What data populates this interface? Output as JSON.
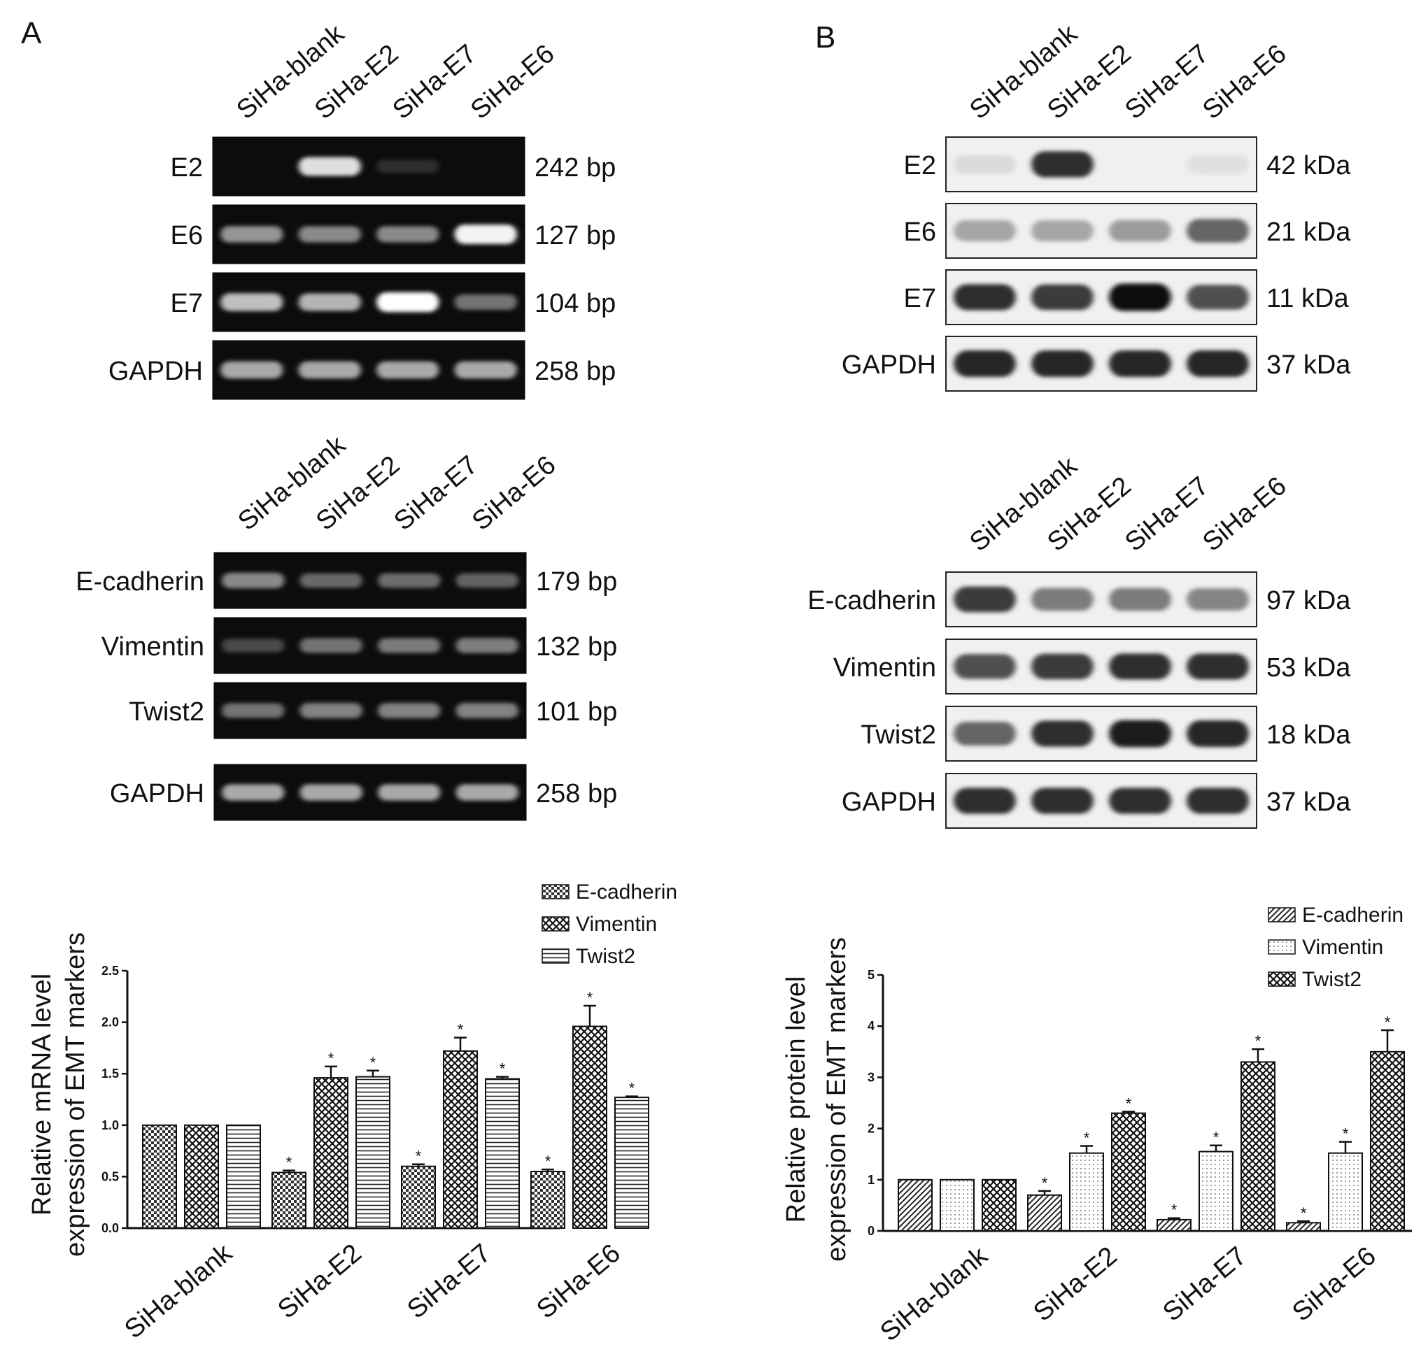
{
  "panels": {
    "A": {
      "label": "A",
      "gel1": {
        "lanes": [
          "SiHa-blank",
          "SiHa-E2",
          "SiHa-E7",
          "SiHa-E6"
        ],
        "rows": [
          {
            "name": "E2",
            "size": "242 bp",
            "intensity": [
              0.02,
              0.85,
              0.03,
              0.02
            ]
          },
          {
            "name": "E6",
            "size": "127 bp",
            "intensity": [
              0.5,
              0.45,
              0.45,
              0.95
            ]
          },
          {
            "name": "E7",
            "size": "104 bp",
            "intensity": [
              0.7,
              0.65,
              1.0,
              0.35
            ]
          },
          {
            "name": "GAPDH",
            "size": "258 bp",
            "intensity": [
              0.6,
              0.6,
              0.6,
              0.6
            ]
          }
        ]
      },
      "gel2": {
        "lanes": [
          "SiHa-blank",
          "SiHa-E2",
          "SiHa-E7",
          "SiHa-E6"
        ],
        "rows": [
          {
            "name": "E-cadherin",
            "size": "179 bp",
            "intensity": [
              0.45,
              0.3,
              0.32,
              0.28
            ]
          },
          {
            "name": "Vimentin",
            "size": "132 bp",
            "intensity": [
              0.15,
              0.35,
              0.38,
              0.4
            ]
          },
          {
            "name": "Twist2",
            "size": "101 bp",
            "intensity": [
              0.35,
              0.42,
              0.42,
              0.42
            ]
          },
          {
            "name": "GAPDH",
            "size": "258 bp",
            "intensity": [
              0.6,
              0.6,
              0.6,
              0.6
            ]
          }
        ]
      }
    },
    "B": {
      "label": "B",
      "blot1": {
        "lanes": [
          "SiHa-blank",
          "SiHa-E2",
          "SiHa-E7",
          "SiHa-E6"
        ],
        "rows": [
          {
            "name": "E2",
            "size": "42 kDa",
            "intensity": [
              0.05,
              0.85,
              0.02,
              0.03
            ]
          },
          {
            "name": "E6",
            "size": "21 kDa",
            "intensity": [
              0.3,
              0.3,
              0.35,
              0.6
            ]
          },
          {
            "name": "E7",
            "size": "11 kDa",
            "intensity": [
              0.85,
              0.8,
              1.0,
              0.7
            ]
          },
          {
            "name": "GAPDH",
            "size": "37 kDa",
            "intensity": [
              0.9,
              0.9,
              0.9,
              0.9
            ]
          }
        ]
      },
      "blot2": {
        "lanes": [
          "SiHa-blank",
          "SiHa-E2",
          "SiHa-E7",
          "SiHa-E6"
        ],
        "rows": [
          {
            "name": "E-cadherin",
            "size": "97 kDa",
            "intensity": [
              0.8,
              0.5,
              0.5,
              0.45
            ]
          },
          {
            "name": "Vimentin",
            "size": "53 kDa",
            "intensity": [
              0.7,
              0.8,
              0.85,
              0.85
            ]
          },
          {
            "name": "Twist2",
            "size": "18 kDa",
            "intensity": [
              0.6,
              0.85,
              0.95,
              0.9
            ]
          },
          {
            "name": "GAPDH",
            "size": "37 kDa",
            "intensity": [
              0.85,
              0.85,
              0.85,
              0.85
            ]
          }
        ]
      }
    }
  },
  "chart_data": [
    {
      "type": "bar",
      "title": "",
      "ylabel_line1": "Relative mRNA level",
      "ylabel_line2": "expression of EMT  markers",
      "xlabel": "",
      "categories": [
        "SiHa-blank",
        "SiHa-E2",
        "SiHa-E7",
        "SiHa-E6"
      ],
      "ylim": [
        0,
        2.5
      ],
      "yticks": [
        "0.0",
        "0.5",
        "1.0",
        "1.5",
        "2.0",
        "2.5"
      ],
      "legend_position": "top-right",
      "series": [
        {
          "name": "E-cadherin",
          "values": [
            1.0,
            0.54,
            0.6,
            0.55
          ],
          "errors": [
            0,
            0.02,
            0.02,
            0.02
          ],
          "significant": [
            false,
            true,
            true,
            true
          ],
          "pattern": "checker"
        },
        {
          "name": "Vimentin",
          "values": [
            1.0,
            1.46,
            1.72,
            1.96
          ],
          "errors": [
            0,
            0.11,
            0.13,
            0.2
          ],
          "significant": [
            false,
            true,
            true,
            true
          ],
          "pattern": "crosshatch"
        },
        {
          "name": "Twist2",
          "values": [
            1.0,
            1.47,
            1.45,
            1.27
          ],
          "errors": [
            0,
            0.06,
            0.02,
            0.01
          ],
          "significant": [
            false,
            true,
            true,
            true
          ],
          "pattern": "hlines"
        }
      ],
      "star": "*"
    },
    {
      "type": "bar",
      "title": "",
      "ylabel_line1": "Relative protein level",
      "ylabel_line2": "expression of EMT markers",
      "xlabel": "",
      "categories": [
        "SiHa-blank",
        "SiHa-E2",
        "SiHa-E7",
        "SiHa-E6"
      ],
      "ylim": [
        0,
        5
      ],
      "yticks": [
        "0",
        "1",
        "2",
        "3",
        "4",
        "5"
      ],
      "legend_position": "top-right",
      "series": [
        {
          "name": "E-cadherin",
          "values": [
            1.0,
            0.7,
            0.22,
            0.16
          ],
          "errors": [
            0,
            0.08,
            0.03,
            0.03
          ],
          "significant": [
            false,
            true,
            true,
            true
          ],
          "pattern": "diag"
        },
        {
          "name": "Vimentin",
          "values": [
            1.0,
            1.52,
            1.55,
            1.52
          ],
          "errors": [
            0,
            0.14,
            0.12,
            0.22
          ],
          "significant": [
            false,
            true,
            true,
            true
          ],
          "pattern": "dots"
        },
        {
          "name": "Twist2",
          "values": [
            1.0,
            2.3,
            3.3,
            3.5
          ],
          "errors": [
            0,
            0.03,
            0.25,
            0.42
          ],
          "significant": [
            false,
            true,
            true,
            true
          ],
          "pattern": "crosshatch"
        }
      ],
      "star": "*"
    }
  ]
}
